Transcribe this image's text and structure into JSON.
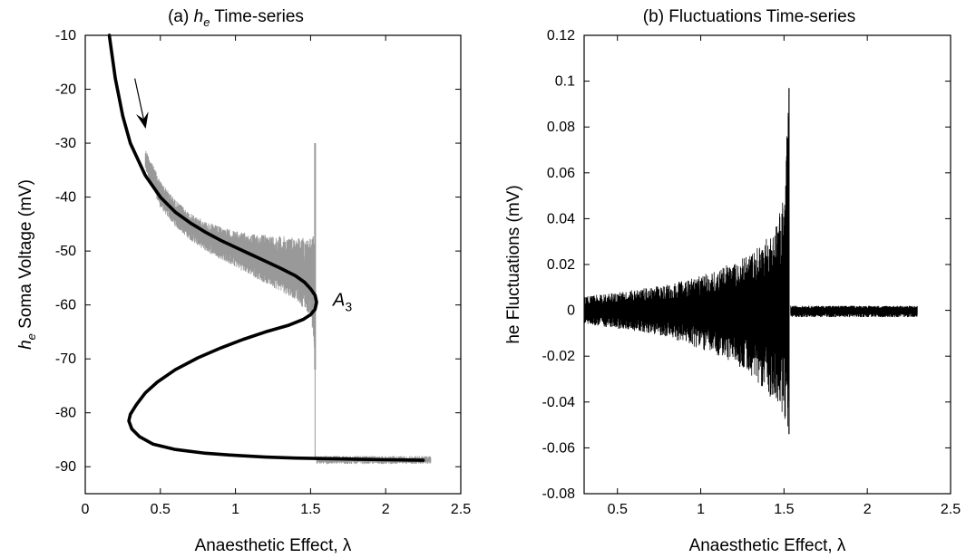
{
  "chart_data": [
    {
      "type": "line",
      "panel": "a",
      "title_prefix": "(a) ",
      "title_symbol": "h",
      "title_subscript": "e",
      "title_suffix": " Time-series",
      "xlabel": "Anaesthetic Effect, λ",
      "ylabel_symbol": "h",
      "ylabel_subscript": "e",
      "ylabel_suffix": " Soma Voltage (mV)",
      "xlim": [
        0,
        2.5
      ],
      "ylim": [
        -95,
        -10
      ],
      "xticks": [
        "0",
        "0.5",
        "1",
        "1.5",
        "2",
        "2.5"
      ],
      "xtick_values": [
        0,
        0.5,
        1,
        1.5,
        2,
        2.5
      ],
      "yticks": [
        "-10",
        "-20",
        "-30",
        "-40",
        "-50",
        "-60",
        "-70",
        "-80",
        "-90"
      ],
      "ytick_values": [
        -10,
        -20,
        -30,
        -40,
        -50,
        -60,
        -70,
        -80,
        -90
      ],
      "annotation": {
        "symbol": "A",
        "subscript": "3",
        "x": 1.54,
        "y": -59
      },
      "arrow": {
        "from": [
          0.33,
          -18
        ],
        "to": [
          0.4,
          -27
        ]
      },
      "series": [
        {
          "color": "#000000",
          "style": "thick-line",
          "x": [
            0.16,
            0.2,
            0.25,
            0.3,
            0.4,
            0.5,
            0.6,
            0.7,
            0.8,
            0.9,
            1.0,
            1.1,
            1.2,
            1.3,
            1.4,
            1.46,
            1.5,
            1.53,
            1.54,
            1.53,
            1.5,
            1.45,
            1.35,
            1.2,
            1.05,
            0.9,
            0.75,
            0.6,
            0.48,
            0.4,
            0.34,
            0.3,
            0.29,
            0.31,
            0.36,
            0.45,
            0.6,
            0.8,
            1.0,
            1.2,
            1.4,
            1.6,
            1.8,
            2.0,
            2.25
          ],
          "y": [
            -10,
            -18,
            -25,
            -30,
            -36,
            -40,
            -42.8,
            -44.8,
            -46.5,
            -48,
            -49.3,
            -50.6,
            -51.9,
            -53.2,
            -54.6,
            -55.8,
            -57,
            -58.2,
            -59.5,
            -60.8,
            -61.8,
            -62.7,
            -63.8,
            -65,
            -66.4,
            -68,
            -69.8,
            -72,
            -74.3,
            -76.3,
            -78.5,
            -80.3,
            -81.5,
            -83,
            -84.4,
            -85.8,
            -86.8,
            -87.5,
            -87.9,
            -88.2,
            -88.4,
            -88.5,
            -88.6,
            -88.7,
            -88.8
          ]
        },
        {
          "color": "#999999",
          "style": "noisy-band",
          "x": [
            0.4,
            0.5,
            0.6,
            0.7,
            0.8,
            0.9,
            1.0,
            1.1,
            1.2,
            1.3,
            1.4,
            1.5,
            1.53
          ],
          "y_upper": [
            -31,
            -37,
            -40.5,
            -43,
            -44.5,
            -45.5,
            -46.3,
            -46.8,
            -47,
            -47.2,
            -47.4,
            -47.5,
            -47
          ],
          "y_lower": [
            -35,
            -42,
            -45.5,
            -48,
            -50,
            -51.5,
            -53,
            -54.5,
            -56,
            -57.5,
            -59,
            -62,
            -71
          ],
          "spike": {
            "x": 1.53,
            "y_top": -30,
            "y_bottom": -72
          },
          "tail": {
            "x": [
              1.54,
              2.3
            ],
            "y_upper": -88,
            "y_lower": -89.5
          }
        }
      ]
    },
    {
      "type": "line",
      "panel": "b",
      "title": "(b)  Fluctuations Time-series",
      "xlabel": "Anaesthetic Effect, λ",
      "ylabel": "he  Fluctuations (mV)",
      "xlim": [
        0.3,
        2.5
      ],
      "ylim": [
        -0.08,
        0.12
      ],
      "xticks": [
        "0.5",
        "1",
        "1.5",
        "2",
        "2.5"
      ],
      "xtick_values": [
        0.5,
        1,
        1.5,
        2,
        2.5
      ],
      "yticks": [
        "0.12",
        "0.1",
        "0.08",
        "0.06",
        "0.04",
        "0.02",
        "0",
        "-0.02",
        "-0.04",
        "-0.06",
        "-0.08"
      ],
      "ytick_values": [
        0.12,
        0.1,
        0.08,
        0.06,
        0.04,
        0.02,
        0,
        -0.02,
        -0.04,
        -0.06,
        -0.08
      ],
      "series": [
        {
          "color": "#000000",
          "style": "noisy-envelope",
          "x": [
            0.3,
            0.5,
            0.7,
            0.9,
            1.0,
            1.1,
            1.2,
            1.3,
            1.4,
            1.45,
            1.5,
            1.53
          ],
          "y_upper": [
            0.006,
            0.008,
            0.01,
            0.013,
            0.015,
            0.018,
            0.021,
            0.025,
            0.032,
            0.038,
            0.05,
            0.097
          ],
          "y_lower": [
            -0.006,
            -0.008,
            -0.01,
            -0.014,
            -0.017,
            -0.02,
            -0.023,
            -0.028,
            -0.036,
            -0.042,
            -0.046,
            -0.054
          ],
          "tail": {
            "x": [
              1.54,
              2.3
            ],
            "y_upper": 0.002,
            "y_lower": -0.003
          }
        }
      ]
    }
  ]
}
